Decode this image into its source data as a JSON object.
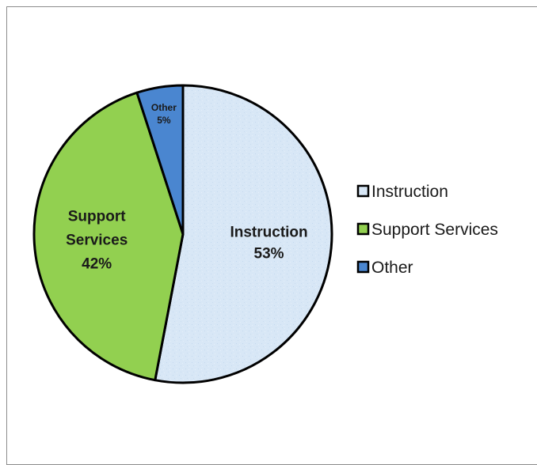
{
  "chart_data": {
    "type": "pie",
    "slices": [
      {
        "label": "Instruction",
        "value": 53,
        "value_label": "53%",
        "color": "#d6e6f6",
        "label_lines": [
          "Instruction"
        ]
      },
      {
        "label": "Support Services",
        "value": 42,
        "value_label": "42%",
        "color": "#92d050",
        "label_lines": [
          "Support",
          "Services"
        ]
      },
      {
        "label": "Other",
        "value": 5,
        "value_label": "5%",
        "color": "#4a86d0",
        "label_lines": [
          "Other"
        ]
      }
    ],
    "legend": {
      "position": "right",
      "entries": [
        "Instruction",
        "Support Services",
        "Other"
      ]
    },
    "slice_outline_color": "#000000",
    "text_color": "#1a1a1a"
  }
}
